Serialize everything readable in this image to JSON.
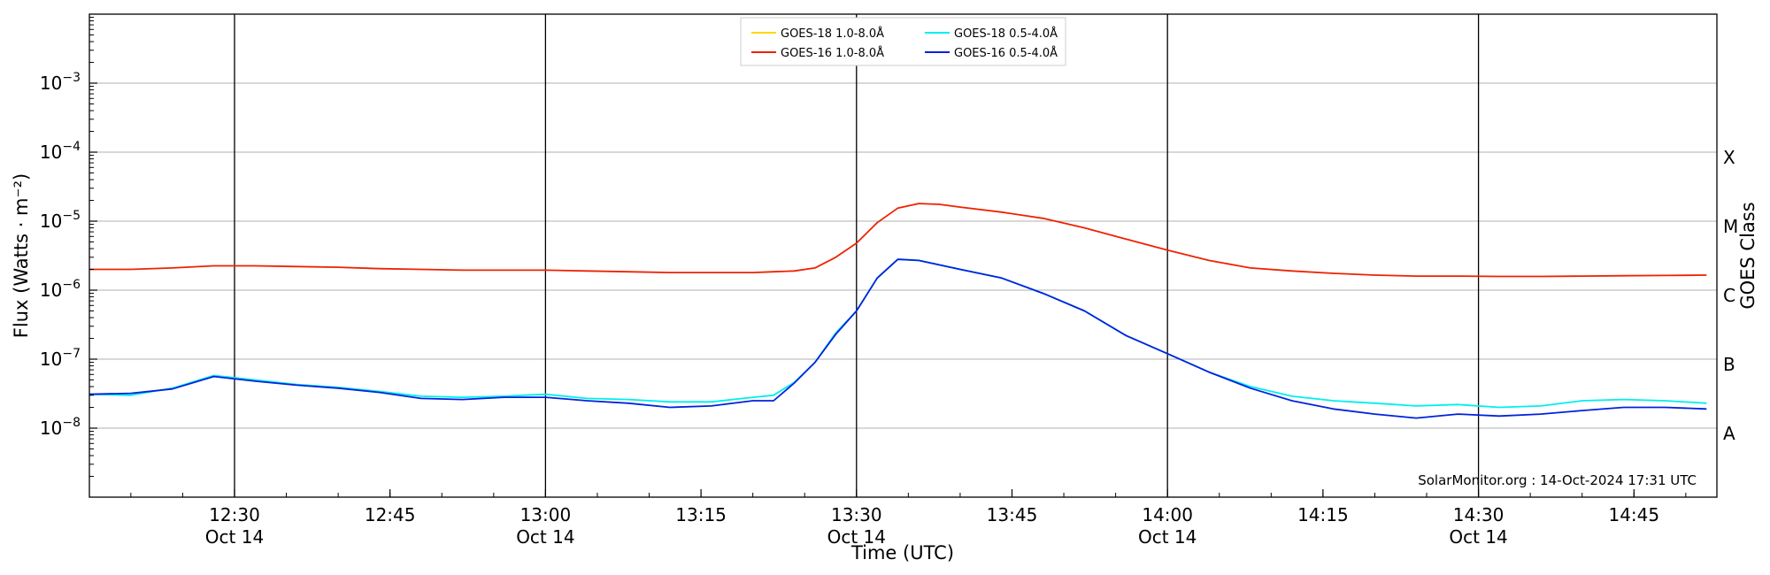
{
  "chart_data": {
    "type": "line",
    "title": "",
    "xlabel": "Time (UTC)",
    "ylabel": "Flux (Watts · m⁻²)",
    "y2label": "GOES Class",
    "y_scale": "log",
    "ylim": [
      1e-09,
      0.01
    ],
    "xlim": [
      "12:16",
      "14:53"
    ],
    "grid": "horizontal at decades; vertical lines at half-hours",
    "legend_position": "top-center",
    "credit": "SolarMonitor.org : 14-Oct-2024 17:31 UTC",
    "y_ticks": [
      {
        "value": 1e-08,
        "base": "10",
        "exp": "−8"
      },
      {
        "value": 1e-07,
        "base": "10",
        "exp": "−7"
      },
      {
        "value": 1e-06,
        "base": "10",
        "exp": "−6"
      },
      {
        "value": 1e-05,
        "base": "10",
        "exp": "−5"
      },
      {
        "value": 0.0001,
        "base": "10",
        "exp": "−4"
      },
      {
        "value": 0.001,
        "base": "10",
        "exp": "−3"
      }
    ],
    "x_ticks": [
      {
        "time": "12:30",
        "label": "12:30",
        "date": "Oct 14"
      },
      {
        "time": "12:45",
        "label": "12:45",
        "date": ""
      },
      {
        "time": "13:00",
        "label": "13:00",
        "date": "Oct 14"
      },
      {
        "time": "13:15",
        "label": "13:15",
        "date": ""
      },
      {
        "time": "13:30",
        "label": "13:30",
        "date": "Oct 14"
      },
      {
        "time": "13:45",
        "label": "13:45",
        "date": ""
      },
      {
        "time": "14:00",
        "label": "14:00",
        "date": "Oct 14"
      },
      {
        "time": "14:15",
        "label": "14:15",
        "date": ""
      },
      {
        "time": "14:30",
        "label": "14:30",
        "date": "Oct 14"
      },
      {
        "time": "14:45",
        "label": "14:45",
        "date": ""
      }
    ],
    "class_labels": [
      {
        "label": "A",
        "value": 1e-08
      },
      {
        "label": "B",
        "value": 1e-07
      },
      {
        "label": "C",
        "value": 1e-06
      },
      {
        "label": "M",
        "value": 1e-05
      },
      {
        "label": "X",
        "value": 0.0001
      }
    ],
    "series": [
      {
        "name": "GOES-18 1.0-8.0Å",
        "color": "#ffd700",
        "x": [],
        "y": []
      },
      {
        "name": "GOES-18 0.5-4.0Å",
        "color": "#00eeee",
        "x": [
          "12:16",
          "12:20",
          "12:24",
          "12:28",
          "12:32",
          "12:36",
          "12:40",
          "12:44",
          "12:48",
          "12:52",
          "12:56",
          "13:00",
          "13:04",
          "13:08",
          "13:12",
          "13:16",
          "13:20",
          "13:22",
          "13:24",
          "13:26",
          "13:28",
          "13:30",
          "13:32",
          "13:34",
          "13:36",
          "13:40",
          "13:44",
          "13:48",
          "13:52",
          "13:56",
          "14:00",
          "14:04",
          "14:08",
          "14:12",
          "14:16",
          "14:20",
          "14:24",
          "14:28",
          "14:32",
          "14:36",
          "14:40",
          "14:44",
          "14:48",
          "14:52"
        ],
        "y": [
          3.1e-08,
          3e-08,
          3.8e-08,
          5.8e-08,
          5e-08,
          4.3e-08,
          3.9e-08,
          3.4e-08,
          2.9e-08,
          2.8e-08,
          2.9e-08,
          3.1e-08,
          2.7e-08,
          2.6e-08,
          2.4e-08,
          2.4e-08,
          2.8e-08,
          3e-08,
          4.6e-08,
          9e-08,
          2.4e-07,
          5e-07,
          1.5e-06,
          2.8e-06,
          2.7e-06,
          2e-06,
          1.5e-06,
          9e-07,
          5e-07,
          2.2e-07,
          1.2e-07,
          6.5e-08,
          4e-08,
          2.9e-08,
          2.5e-08,
          2.3e-08,
          2.1e-08,
          2.2e-08,
          2e-08,
          2.1e-08,
          2.5e-08,
          2.6e-08,
          2.5e-08,
          2.3e-08
        ]
      },
      {
        "name": "GOES-16 1.0-8.0Å",
        "color": "#ee2200",
        "x": [
          "12:16",
          "12:20",
          "12:24",
          "12:28",
          "12:32",
          "12:36",
          "12:40",
          "12:44",
          "12:48",
          "12:52",
          "12:56",
          "13:00",
          "13:04",
          "13:08",
          "13:12",
          "13:16",
          "13:20",
          "13:22",
          "13:24",
          "13:26",
          "13:28",
          "13:30",
          "13:32",
          "13:34",
          "13:36",
          "13:38",
          "13:40",
          "13:44",
          "13:48",
          "13:52",
          "13:56",
          "14:00",
          "14:04",
          "14:08",
          "14:12",
          "14:16",
          "14:20",
          "14:24",
          "14:28",
          "14:32",
          "14:36",
          "14:40",
          "14:44",
          "14:48",
          "14:52"
        ],
        "y": [
          2e-06,
          2e-06,
          2.1e-06,
          2.25e-06,
          2.25e-06,
          2.2e-06,
          2.15e-06,
          2.05e-06,
          2e-06,
          1.95e-06,
          1.95e-06,
          1.95e-06,
          1.9e-06,
          1.85e-06,
          1.8e-06,
          1.8e-06,
          1.8e-06,
          1.85e-06,
          1.9e-06,
          2.1e-06,
          3e-06,
          4.8e-06,
          9.5e-06,
          1.55e-05,
          1.8e-05,
          1.75e-05,
          1.6e-05,
          1.35e-05,
          1.1e-05,
          8e-06,
          5.5e-06,
          3.8e-06,
          2.7e-06,
          2.1e-06,
          1.9e-06,
          1.75e-06,
          1.65e-06,
          1.6e-06,
          1.6e-06,
          1.58e-06,
          1.58e-06,
          1.6e-06,
          1.62e-06,
          1.63e-06,
          1.65e-06
        ]
      },
      {
        "name": "GOES-16 0.5-4.0Å",
        "color": "#0022dd",
        "x": [
          "12:16",
          "12:20",
          "12:24",
          "12:28",
          "12:32",
          "12:36",
          "12:40",
          "12:44",
          "12:48",
          "12:52",
          "12:56",
          "13:00",
          "13:04",
          "13:08",
          "13:12",
          "13:16",
          "13:20",
          "13:22",
          "13:24",
          "13:26",
          "13:28",
          "13:30",
          "13:32",
          "13:34",
          "13:36",
          "13:40",
          "13:44",
          "13:48",
          "13:52",
          "13:56",
          "14:00",
          "14:04",
          "14:08",
          "14:12",
          "14:16",
          "14:20",
          "14:24",
          "14:28",
          "14:32",
          "14:36",
          "14:40",
          "14:44",
          "14:48",
          "14:52"
        ],
        "y": [
          3.1e-08,
          3.2e-08,
          3.7e-08,
          5.6e-08,
          4.8e-08,
          4.2e-08,
          3.8e-08,
          3.3e-08,
          2.7e-08,
          2.6e-08,
          2.8e-08,
          2.8e-08,
          2.5e-08,
          2.3e-08,
          2e-08,
          2.1e-08,
          2.5e-08,
          2.5e-08,
          4.5e-08,
          9e-08,
          2.3e-07,
          5e-07,
          1.5e-06,
          2.8e-06,
          2.7e-06,
          2e-06,
          1.5e-06,
          9e-07,
          5e-07,
          2.2e-07,
          1.2e-07,
          6.5e-08,
          3.8e-08,
          2.5e-08,
          1.9e-08,
          1.6e-08,
          1.4e-08,
          1.6e-08,
          1.5e-08,
          1.6e-08,
          1.8e-08,
          2e-08,
          2e-08,
          1.9e-08
        ]
      }
    ]
  }
}
